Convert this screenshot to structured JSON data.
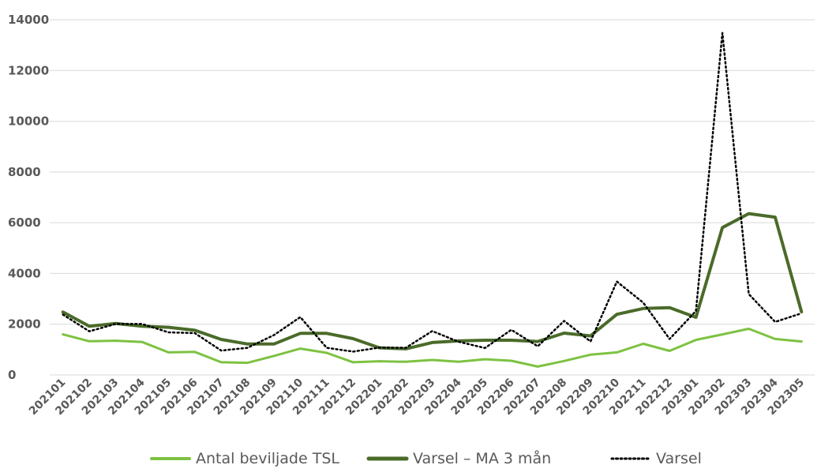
{
  "chart_data": {
    "type": "line",
    "title": "",
    "xlabel": "",
    "ylabel": "",
    "ylim": [
      0,
      14000
    ],
    "yticks": [
      0,
      2000,
      4000,
      6000,
      8000,
      10000,
      12000,
      14000
    ],
    "grid": "horizontal",
    "legend_position": "bottom",
    "categories": [
      "202101",
      "202102",
      "202103",
      "202104",
      "202105",
      "202106",
      "202107",
      "202108",
      "202109",
      "202110",
      "202111",
      "202112",
      "202201",
      "202202",
      "202203",
      "202204",
      "202205",
      "202206",
      "202207",
      "202208",
      "202209",
      "202210",
      "202211",
      "202212",
      "202301",
      "202302",
      "202303",
      "202304",
      "202305"
    ],
    "series": [
      {
        "name": "Antal beviljade TSL",
        "color": "#7dc242",
        "style": "solid",
        "values": [
          1600,
          1330,
          1350,
          1300,
          890,
          910,
          500,
          480,
          750,
          1040,
          870,
          500,
          540,
          520,
          590,
          520,
          620,
          560,
          330,
          550,
          800,
          890,
          1230,
          950,
          1380,
          1600,
          1820,
          1420,
          1320
        ]
      },
      {
        "name": "Varsel – MA 3 mån",
        "color": "#4a6b2a",
        "style": "solid",
        "values": [
          2480,
          1920,
          2030,
          1920,
          1880,
          1760,
          1400,
          1220,
          1220,
          1640,
          1640,
          1430,
          1070,
          1030,
          1280,
          1340,
          1370,
          1370,
          1320,
          1650,
          1540,
          2390,
          2620,
          2650,
          2270,
          5810,
          6360,
          6220,
          2490
        ]
      },
      {
        "name": "Varsel",
        "color": "#000000",
        "style": "dotted",
        "values": [
          2380,
          1720,
          2010,
          2010,
          1680,
          1650,
          960,
          1070,
          1570,
          2280,
          1070,
          920,
          1080,
          1070,
          1730,
          1310,
          1060,
          1780,
          1130,
          2130,
          1320,
          3680,
          2850,
          1420,
          2520,
          13480,
          3190,
          2090,
          2430
        ]
      }
    ]
  }
}
